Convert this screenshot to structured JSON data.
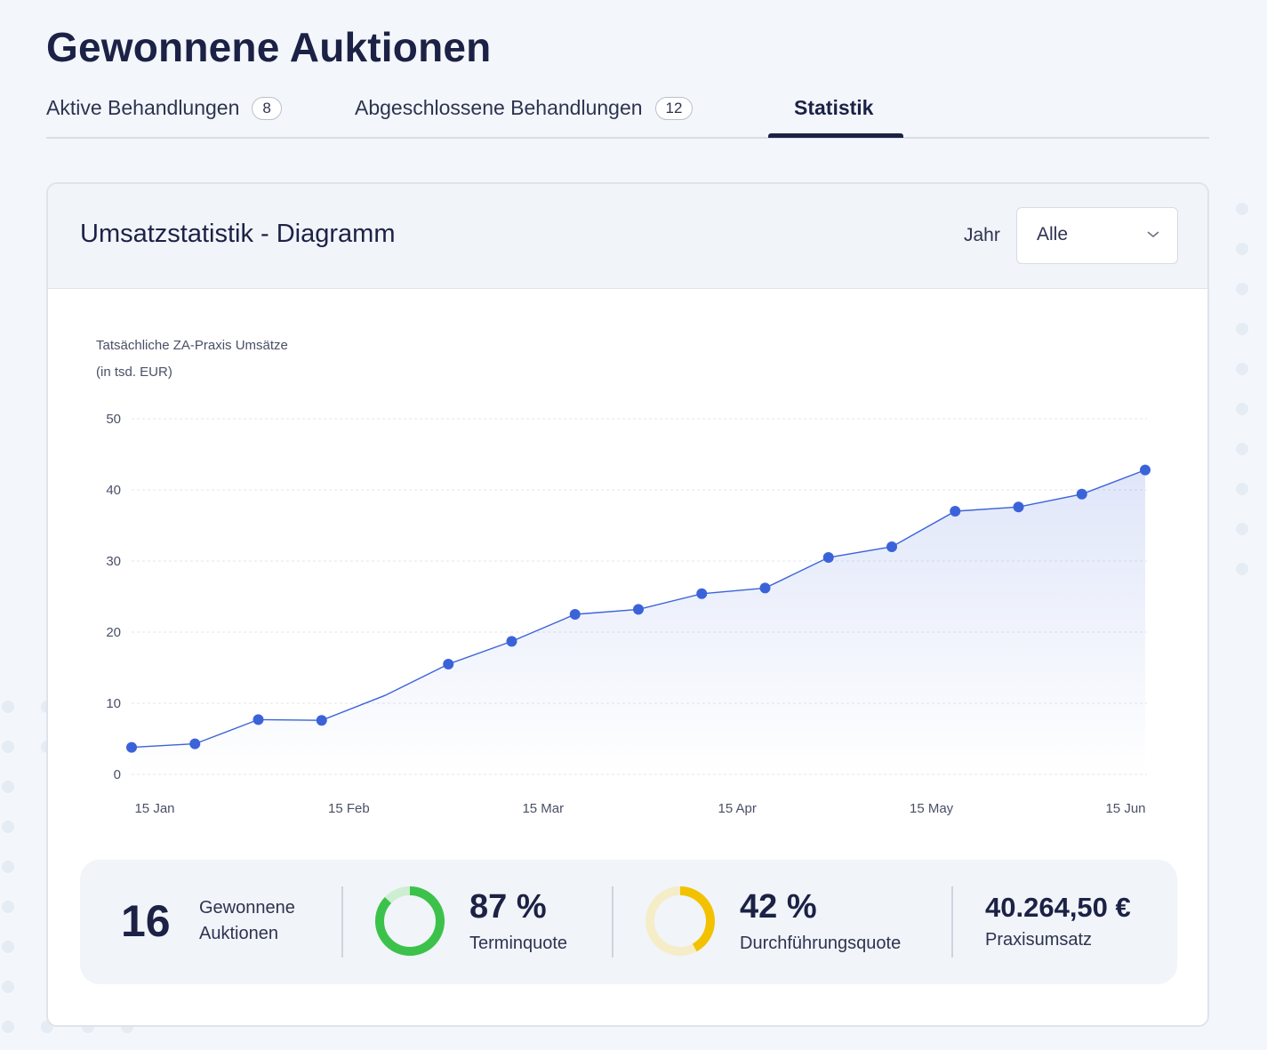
{
  "page": {
    "title": "Gewonnene Auktionen"
  },
  "tabs": [
    {
      "label": "Aktive Behandlungen",
      "badge": "8"
    },
    {
      "label": "Abgeschlossene Behandlungen",
      "badge": "12"
    },
    {
      "label": "Statistik",
      "badge": null,
      "active": true
    }
  ],
  "card": {
    "title": "Umsatzstatistik - Diagramm",
    "year_label": "Jahr",
    "year_value": "Alle"
  },
  "chart_data": {
    "type": "area",
    "ylabel_line1": "Tatsächliche ZA-Praxis Umsätze",
    "ylabel_line2": "(in tsd. EUR)",
    "ylim": [
      0,
      50
    ],
    "yticks": [
      0,
      10,
      20,
      30,
      40,
      50
    ],
    "xtick_labels": [
      "15 Jan",
      "15 Feb",
      "15 Mar",
      "15 Apr",
      "15 May",
      "15 Jun"
    ],
    "series": [
      {
        "name": "Umsatz",
        "color": "#3b63d9",
        "x_day": [
          0,
          10,
          20,
          30,
          40,
          50,
          60,
          70,
          80,
          90,
          100,
          110,
          120,
          130,
          140,
          150,
          160
        ],
        "values": [
          3.8,
          4.3,
          7.7,
          7.6,
          11.1,
          15.5,
          18.7,
          22.5,
          23.2,
          25.4,
          26.2,
          30.5,
          32.0,
          37.0,
          37.6,
          39.4,
          42.8
        ],
        "markers": [
          true,
          true,
          true,
          true,
          false,
          true,
          true,
          true,
          true,
          true,
          true,
          true,
          true,
          true,
          true,
          true,
          true
        ]
      }
    ]
  },
  "stats": {
    "won_count": "16",
    "won_label_line1": "Gewonnene",
    "won_label_line2": "Auktionen",
    "termin_pct_text": "87 %",
    "termin_label": "Terminquote",
    "termin_value": 87,
    "termin_color": "#3cc24a",
    "termin_track": "#cdeed0",
    "durch_pct_text": "42 %",
    "durch_label": "Durchführungsquote",
    "durch_value": 42,
    "durch_color": "#f2c200",
    "durch_track": "#f5edc7",
    "revenue": "40.264,50 €",
    "revenue_label": "Praxisumsatz"
  }
}
